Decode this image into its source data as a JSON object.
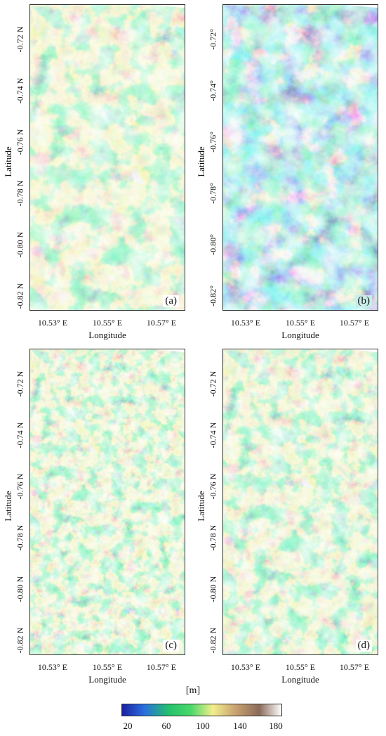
{
  "figure": {
    "panels": [
      {
        "id": "a",
        "label": "(a)",
        "tone": "normal"
      },
      {
        "id": "b",
        "label": "(b)",
        "tone": "low"
      },
      {
        "id": "c",
        "label": "(c)",
        "tone": "noisy"
      },
      {
        "id": "d",
        "label": "(d)",
        "tone": "smooth"
      }
    ],
    "y_axis": {
      "label": "Latitude",
      "ticks_plain": [
        "-0.72 N",
        "-0.74 N",
        "-0.76 N",
        "-0.78 N",
        "-0.80 N",
        "-0.82 N"
      ],
      "ticks_deg": [
        "-0.72°",
        "-0.74°",
        "-0.76°",
        "-0.78°",
        "-0.80°",
        "-0.82°"
      ]
    },
    "x_axis": {
      "label": "Longitude",
      "ticks": [
        "10.53° E",
        "10.55° E",
        "10.57° E"
      ]
    },
    "colorbar": {
      "unit": "[m]",
      "ticks": [
        "20",
        "60",
        "100",
        "140",
        "180"
      ],
      "min": 20,
      "max": 180,
      "colors": [
        "#1c1fa0",
        "#2b6fe0",
        "#22c06e",
        "#48d86a",
        "#f2ee8c",
        "#c9a370",
        "#8b6a5a",
        "#ffffff"
      ]
    }
  }
}
